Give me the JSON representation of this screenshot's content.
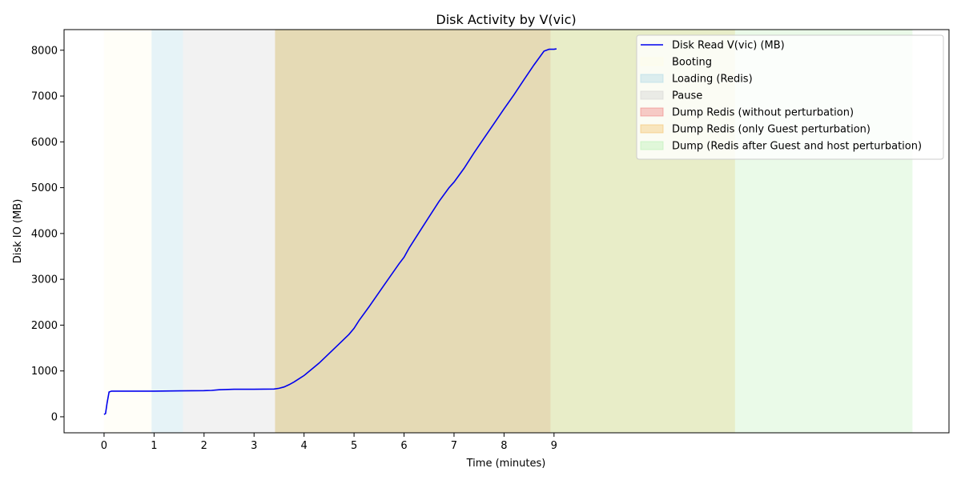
{
  "chart_data": {
    "type": "line",
    "title": "Disk Activity by V(vic)",
    "xlabel": "Time (minutes)",
    "ylabel": "Disk IO (MB)",
    "xlim": [
      -0.8,
      16.9
    ],
    "ylim": [
      -350,
      8450
    ],
    "x_ticks": [
      0,
      1,
      2,
      3,
      4,
      5,
      6,
      7,
      8,
      9
    ],
    "y_ticks": [
      0,
      1000,
      2000,
      3000,
      4000,
      5000,
      6000,
      7000,
      8000
    ],
    "grid": false,
    "legend_position": "top-right",
    "line_color": "#0000ee",
    "phases": [
      {
        "name": "Booting",
        "start": 0.0,
        "end": 0.95,
        "color": "#fffde8"
      },
      {
        "name": "Loading (Redis)",
        "start": 0.95,
        "end": 1.58,
        "color": "#add8e6"
      },
      {
        "name": "Pause",
        "start": 1.58,
        "end": 3.42,
        "color": "#d3d3d3"
      },
      {
        "name": "Dump Redis (without perturbation)",
        "start": 3.42,
        "end": 8.93,
        "color": "#f08080"
      },
      {
        "name": "Dump Redis (only Guest perturbation)",
        "start": 3.42,
        "end": 12.62,
        "color": "#f5c26b"
      },
      {
        "name": "Dump (Redis after Guest and host perturbation)",
        "start": 3.42,
        "end": 16.17,
        "color": "#b9f0b2"
      }
    ],
    "series": [
      {
        "name": "Disk Read V(vic) (MB)",
        "x": [
          0.0,
          0.03,
          0.06,
          0.1,
          0.15,
          0.5,
          1.0,
          1.5,
          2.0,
          2.15,
          2.3,
          2.6,
          3.0,
          3.4,
          3.5,
          3.6,
          3.7,
          3.8,
          3.9,
          4.0,
          4.1,
          4.2,
          4.3,
          4.5,
          4.7,
          4.9,
          5.0,
          5.1,
          5.3,
          5.6,
          5.9,
          6.0,
          6.1,
          6.3,
          6.5,
          6.7,
          6.9,
          7.0,
          7.2,
          7.4,
          7.6,
          7.8,
          8.0,
          8.2,
          8.4,
          8.6,
          8.8,
          8.9,
          9.0,
          9.05
        ],
        "y": [
          50,
          70,
          300,
          540,
          560,
          560,
          560,
          565,
          570,
          575,
          590,
          600,
          600,
          605,
          620,
          650,
          700,
          760,
          830,
          900,
          990,
          1080,
          1170,
          1380,
          1590,
          1800,
          1930,
          2100,
          2400,
          2870,
          3340,
          3480,
          3680,
          4020,
          4360,
          4700,
          5000,
          5120,
          5420,
          5760,
          6080,
          6400,
          6720,
          7030,
          7360,
          7680,
          7980,
          8020,
          8020,
          8030
        ]
      }
    ]
  }
}
